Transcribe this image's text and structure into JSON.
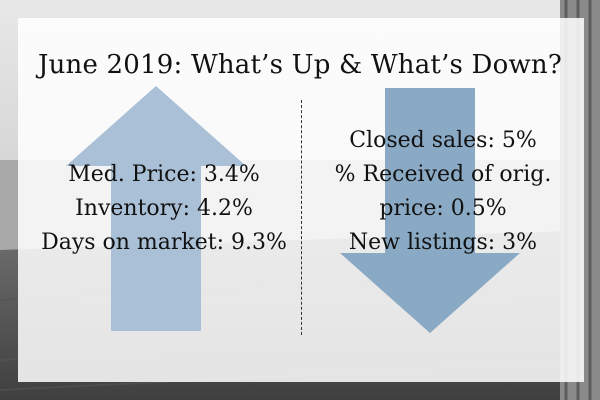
{
  "title": "June 2019: What’s Up & What’s Down?",
  "up": {
    "lines": [
      "Med. Price: 3.4%",
      "Inventory: 4.2%",
      "Days on market: 9.3%"
    ],
    "arrow_color": "#a9c0d6"
  },
  "down": {
    "lines": [
      "Closed sales: 5%",
      "% Received of orig.",
      "price: 0.5%",
      "New listings: 3%"
    ],
    "arrow_color": "#8aa9c4"
  },
  "colors": {
    "panel": "#ffffff",
    "text": "#111111",
    "photo": "#7d7d7d"
  }
}
